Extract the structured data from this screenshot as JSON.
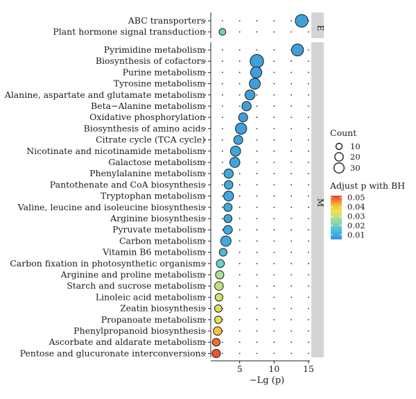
{
  "chart_data": {
    "type": "scatter",
    "subtype": "bubble",
    "xlabel": "−Lg (p)",
    "ylabel": "",
    "title": "",
    "xlim": [
      0,
      15
    ],
    "xticks": [
      5,
      10,
      15
    ],
    "grid": "dotted",
    "facets": [
      {
        "label": "E",
        "points": [
          {
            "term": "ABC transporters",
            "x": 14.0,
            "count": 33,
            "padj": 0.008
          },
          {
            "term": "Plant hormone signal transduction",
            "x": 2.5,
            "count": 5,
            "padj": 0.02
          }
        ]
      },
      {
        "label": "M",
        "points": [
          {
            "term": "Pyrimidine metabolism",
            "x": 13.4,
            "count": 28,
            "padj": 0.008
          },
          {
            "term": "Biosynthesis of cofactors",
            "x": 7.5,
            "count": 38,
            "padj": 0.008
          },
          {
            "term": "Purine metabolism",
            "x": 7.4,
            "count": 24,
            "padj": 0.008
          },
          {
            "term": "Tyrosine metabolism",
            "x": 7.2,
            "count": 22,
            "padj": 0.008
          },
          {
            "term": "Alanine, aspartate and glutamate metabolism",
            "x": 6.5,
            "count": 17,
            "padj": 0.008
          },
          {
            "term": "Beta−Alanine metabolism",
            "x": 6.0,
            "count": 14,
            "padj": 0.008
          },
          {
            "term": "Oxidative phosphorylation",
            "x": 5.5,
            "count": 13,
            "padj": 0.008
          },
          {
            "term": "Biosynthesis of amino acids",
            "x": 5.2,
            "count": 24,
            "padj": 0.008
          },
          {
            "term": "Citrate cycle (TCA cycle)",
            "x": 4.8,
            "count": 13,
            "padj": 0.009
          },
          {
            "term": "Nicotinate and nicotinamide metabolism",
            "x": 4.4,
            "count": 18,
            "padj": 0.009
          },
          {
            "term": "Galactose metabolism",
            "x": 4.3,
            "count": 18,
            "padj": 0.009
          },
          {
            "term": "Phenylalanine metabolism",
            "x": 3.4,
            "count": 14,
            "padj": 0.01
          },
          {
            "term": "Pantothenate and CoA biosynthesis",
            "x": 3.4,
            "count": 11,
            "padj": 0.01
          },
          {
            "term": "Tryptophan metabolism",
            "x": 3.4,
            "count": 17,
            "padj": 0.01
          },
          {
            "term": "Valine, leucine and isoleucine biosynthesis",
            "x": 3.3,
            "count": 10,
            "padj": 0.01
          },
          {
            "term": "Arginine biosynthesis",
            "x": 3.3,
            "count": 9,
            "padj": 0.01
          },
          {
            "term": "Pyruvate metabolism",
            "x": 3.3,
            "count": 12,
            "padj": 0.01
          },
          {
            "term": "Carbon metabolism",
            "x": 3.0,
            "count": 19,
            "padj": 0.01
          },
          {
            "term": "Vitamin B6 metabolism",
            "x": 2.6,
            "count": 8,
            "padj": 0.014
          },
          {
            "term": "Carbon fixation in photosynthetic organisms",
            "x": 2.2,
            "count": 9,
            "padj": 0.02
          },
          {
            "term": "Arginine and proline metabolism",
            "x": 2.1,
            "count": 10,
            "padj": 0.027
          },
          {
            "term": "Starch and sucrose metabolism",
            "x": 2.0,
            "count": 11,
            "padj": 0.03
          },
          {
            "term": "Linoleic acid metabolism",
            "x": 2.0,
            "count": 8,
            "padj": 0.033
          },
          {
            "term": "Zeatin biosynthesis",
            "x": 1.9,
            "count": 7,
            "padj": 0.033
          },
          {
            "term": "Propanoate metabolism",
            "x": 1.9,
            "count": 7,
            "padj": 0.035
          },
          {
            "term": "Phenylpropanoid biosynthesis",
            "x": 1.8,
            "count": 11,
            "padj": 0.04
          },
          {
            "term": "Ascorbate and aldarate metabolism",
            "x": 1.6,
            "count": 8,
            "padj": 0.048
          },
          {
            "term": "Pentose and glucuronate interconversions",
            "x": 1.6,
            "count": 10,
            "padj": 0.05
          }
        ]
      }
    ],
    "legend_size": {
      "title": "Count",
      "values": [
        10,
        20,
        30
      ],
      "labels": [
        "10",
        "20",
        "30"
      ]
    },
    "legend_color": {
      "title": "Adjust p with BH",
      "ticks": [
        0.05,
        0.04,
        0.03,
        0.02,
        0.01
      ],
      "tick_labels": [
        "0.05",
        "0.04",
        "0.03",
        "0.02",
        "0.01"
      ],
      "range": [
        0.005,
        0.052
      ],
      "colors_low_to_high": [
        "#3f8fd6",
        "#3fb8e0",
        "#6ed3c4",
        "#b8e08a",
        "#f2e04a",
        "#f7a630",
        "#e8392d"
      ]
    },
    "legend_placement": "right"
  }
}
